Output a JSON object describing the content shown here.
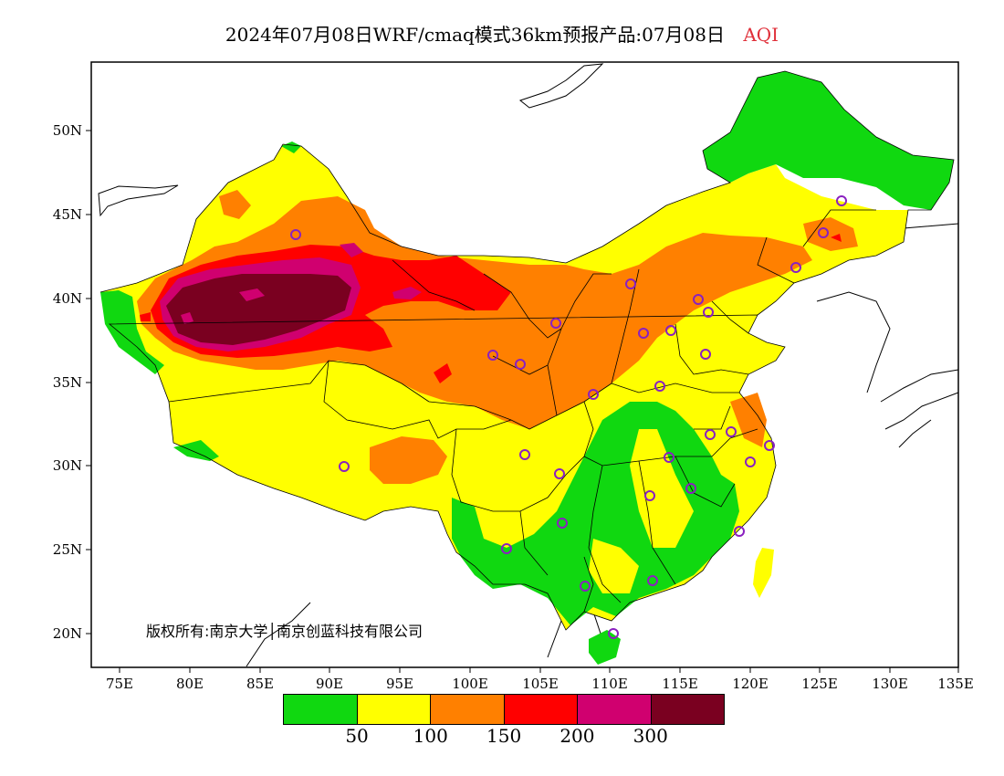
{
  "title": {
    "text": "2024年07月08日WRF/cmaq模式36km预报产品:07月08日",
    "variable": "AQI",
    "variable_color": "#e0303a"
  },
  "map": {
    "lat_ticks": [
      "20N",
      "25N",
      "30N",
      "35N",
      "40N",
      "45N",
      "50N"
    ],
    "lon_ticks": [
      "75E",
      "80E",
      "85E",
      "90E",
      "95E",
      "100E",
      "105E",
      "110E",
      "115E",
      "120E",
      "125E",
      "130E",
      "135E"
    ],
    "copyright": "版权所有:南京大学│南京创蓝科技有限公司"
  },
  "legend": {
    "colors": [
      "#10d810",
      "#ffff00",
      "#ff8000",
      "#ff0000",
      "#d0006f",
      "#7a0020"
    ],
    "labels": [
      "50",
      "100",
      "150",
      "200",
      "300"
    ]
  }
}
